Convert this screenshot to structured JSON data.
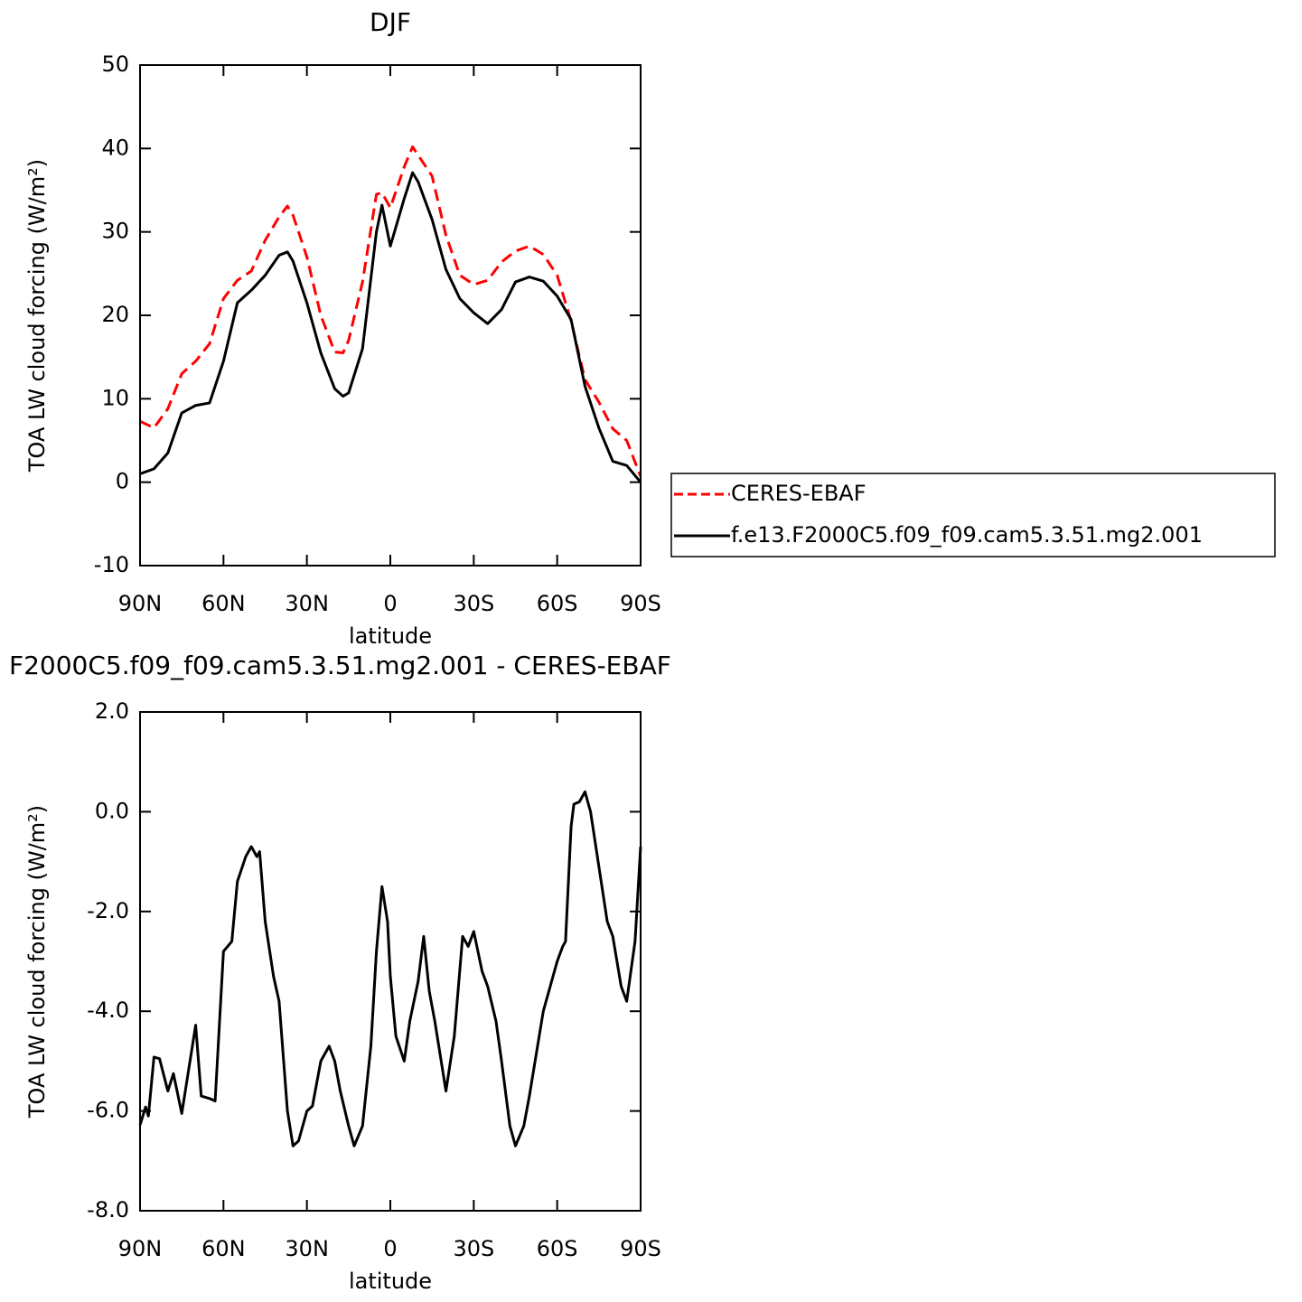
{
  "chart_data": [
    {
      "type": "line",
      "title": "DJF",
      "x_label": "latitude",
      "y_label": "TOA LW cloud forcing (W/m²)",
      "x": [
        90,
        85,
        80,
        75,
        70,
        65,
        60,
        55,
        50,
        45,
        40,
        37,
        35,
        30,
        25,
        20,
        17,
        15,
        10,
        5,
        3,
        0,
        -5,
        -8,
        -10,
        -15,
        -20,
        -25,
        -30,
        -35,
        -40,
        -45,
        -50,
        -55,
        -60,
        -65,
        -70,
        -75,
        -80,
        -85,
        -90
      ],
      "series": [
        {
          "name": "CERES-EBAF",
          "color": "#ff0000",
          "dashed": true,
          "values": [
            7.3,
            6.5,
            8.8,
            13,
            14.5,
            16.6,
            22,
            24.2,
            25.3,
            29,
            31.8,
            33.1,
            32,
            27,
            20,
            15.6,
            15.5,
            17,
            24,
            34.5,
            34.7,
            32.9,
            37.8,
            40.2,
            39.2,
            36.7,
            29.6,
            24.8,
            23.7,
            24.2,
            26.4,
            27.7,
            28.3,
            27.3,
            24.8,
            19.3,
            12.3,
            9.6,
            6.4,
            5,
            0.7
          ]
        },
        {
          "name": "f.e13.F2000C5.f09_f09.cam5.3.51.mg2.001",
          "color": "#000000",
          "dashed": false,
          "values": [
            1.0,
            1.6,
            3.5,
            8.3,
            9.2,
            9.5,
            14.5,
            21.5,
            23,
            24.8,
            27.2,
            27.6,
            26.5,
            21.5,
            15.5,
            11.2,
            10.3,
            10.7,
            16,
            30,
            33.2,
            28.3,
            34,
            37.1,
            36,
            31.5,
            25.5,
            22,
            20.3,
            19,
            20.7,
            24,
            24.6,
            24.1,
            22.3,
            19.5,
            11.5,
            6.5,
            2.5,
            2,
            0
          ]
        }
      ],
      "xlim": [
        90,
        -90
      ],
      "xticks": [
        {
          "value": 90,
          "label": "90N"
        },
        {
          "value": 60,
          "label": "60N"
        },
        {
          "value": 30,
          "label": "30N"
        },
        0,
        {
          "value": -30,
          "label": "30S"
        },
        {
          "value": -60,
          "label": "60S"
        },
        {
          "value": -90,
          "label": "90S"
        }
      ],
      "ylim": [
        -10,
        50
      ],
      "yticks": [
        -10,
        0,
        10,
        20,
        30,
        40,
        50
      ],
      "legend": "right"
    },
    {
      "type": "line",
      "title": "F2000C5.f09_f09.cam5.3.51.mg2.001 - CERES-EBAF",
      "x_label": "latitude",
      "y_label": "TOA LW cloud forcing (W/m²)",
      "x": [
        90,
        88,
        87,
        85,
        83,
        80,
        78,
        75,
        70,
        68,
        65,
        63,
        60,
        57,
        55,
        52,
        50,
        48,
        47,
        45,
        42,
        40,
        37,
        35,
        33,
        30,
        28,
        25,
        22,
        20,
        18,
        15,
        13,
        10,
        7,
        5,
        3,
        1,
        0,
        -2,
        -5,
        -7,
        -10,
        -12,
        -14,
        -16,
        -20,
        -23,
        -26,
        -28,
        -30,
        -33,
        -35,
        -38,
        -40,
        -43,
        -45,
        -48,
        -50,
        -55,
        -60,
        -62,
        -63,
        -65,
        -66,
        -68,
        -70,
        -72,
        -75,
        -78,
        -80,
        -83,
        -85,
        -88,
        -90
      ],
      "values": [
        -6.28,
        -5.92,
        -6.1,
        -4.92,
        -4.95,
        -5.6,
        -5.25,
        -6.05,
        -4.28,
        -5.7,
        -5.75,
        -5.8,
        -2.8,
        -2.6,
        -1.4,
        -0.9,
        -0.7,
        -0.9,
        -0.8,
        -2.2,
        -3.3,
        -3.8,
        -6.0,
        -6.7,
        -6.6,
        -6.0,
        -5.9,
        -5.0,
        -4.7,
        -5.0,
        -5.6,
        -6.3,
        -6.7,
        -6.3,
        -4.7,
        -2.8,
        -1.5,
        -2.2,
        -3.3,
        -4.5,
        -5.0,
        -4.2,
        -3.4,
        -2.5,
        -3.6,
        -4.2,
        -5.6,
        -4.5,
        -2.5,
        -2.7,
        -2.4,
        -3.2,
        -3.5,
        -4.2,
        -5.0,
        -6.3,
        -6.7,
        -6.3,
        -5.7,
        -4.0,
        -3.0,
        -2.7,
        -2.6,
        -0.3,
        0.15,
        0.2,
        0.4,
        0.0,
        -1.1,
        -2.2,
        -2.5,
        -3.5,
        -3.8,
        -2.6,
        -0.7
      ],
      "color": "#000000",
      "xlim": [
        90,
        -90
      ],
      "xticks": [
        {
          "value": 90,
          "label": "90N"
        },
        {
          "value": 60,
          "label": "60N"
        },
        {
          "value": 30,
          "label": "30N"
        },
        0,
        {
          "value": -30,
          "label": "30S"
        },
        {
          "value": -60,
          "label": "60S"
        },
        {
          "value": -90,
          "label": "90S"
        }
      ],
      "ylim": [
        -8,
        2
      ],
      "yticks": [
        {
          "value": 2,
          "label": "2.0"
        },
        {
          "value": 0,
          "label": "0.0"
        },
        {
          "value": -2,
          "label": "-2.0"
        },
        {
          "value": -4,
          "label": "-4.0"
        },
        {
          "value": -6,
          "label": "-6.0"
        },
        {
          "value": -8,
          "label": "-8.0"
        }
      ]
    }
  ]
}
